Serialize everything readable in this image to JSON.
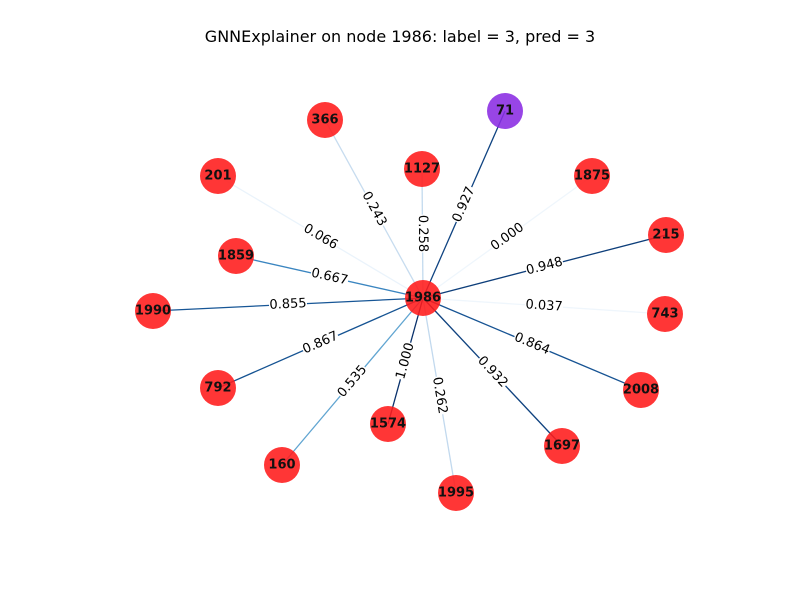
{
  "title": "GNNExplainer on node 1986: label = 3, pred = 3",
  "colors": {
    "class_red": "#ff1a1a",
    "class_purple": "#8a2be2"
  },
  "graph": {
    "center": "1986",
    "nodes": [
      {
        "id": "1986",
        "color": "#ff1a1a"
      },
      {
        "id": "71",
        "color": "#8a2be2"
      },
      {
        "id": "366",
        "color": "#ff1a1a"
      },
      {
        "id": "1127",
        "color": "#ff1a1a"
      },
      {
        "id": "1875",
        "color": "#ff1a1a"
      },
      {
        "id": "201",
        "color": "#ff1a1a"
      },
      {
        "id": "215",
        "color": "#ff1a1a"
      },
      {
        "id": "1859",
        "color": "#ff1a1a"
      },
      {
        "id": "1990",
        "color": "#ff1a1a"
      },
      {
        "id": "743",
        "color": "#ff1a1a"
      },
      {
        "id": "792",
        "color": "#ff1a1a"
      },
      {
        "id": "2008",
        "color": "#ff1a1a"
      },
      {
        "id": "1574",
        "color": "#ff1a1a"
      },
      {
        "id": "1697",
        "color": "#ff1a1a"
      },
      {
        "id": "160",
        "color": "#ff1a1a"
      },
      {
        "id": "1995",
        "color": "#ff1a1a"
      }
    ],
    "edges": [
      {
        "source": "1986",
        "target": "71",
        "weight": "0.927"
      },
      {
        "source": "1986",
        "target": "366",
        "weight": "0.243"
      },
      {
        "source": "1986",
        "target": "1127",
        "weight": "0.258"
      },
      {
        "source": "1986",
        "target": "1875",
        "weight": "0.000"
      },
      {
        "source": "1986",
        "target": "201",
        "weight": "0.066"
      },
      {
        "source": "1986",
        "target": "215",
        "weight": "0.948"
      },
      {
        "source": "1986",
        "target": "1859",
        "weight": "0.667"
      },
      {
        "source": "1986",
        "target": "1990",
        "weight": "0.855"
      },
      {
        "source": "1986",
        "target": "743",
        "weight": "0.037"
      },
      {
        "source": "1986",
        "target": "792",
        "weight": "0.867"
      },
      {
        "source": "1986",
        "target": "2008",
        "weight": "0.864"
      },
      {
        "source": "1986",
        "target": "1574",
        "weight": "1.000"
      },
      {
        "source": "1986",
        "target": "1697",
        "weight": "0.932"
      },
      {
        "source": "1986",
        "target": "160",
        "weight": "0.535"
      },
      {
        "source": "1986",
        "target": "1995",
        "weight": "0.262"
      }
    ]
  }
}
